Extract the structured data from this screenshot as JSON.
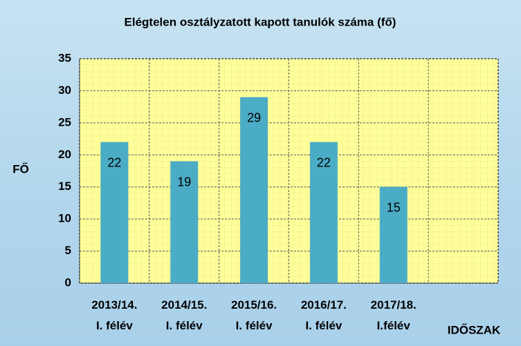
{
  "chart_data": {
    "type": "bar",
    "title": "Elégtelen osztályzatott kapott tanulók száma (fő)",
    "y_label": "FŐ",
    "x_label": "IDŐSZAK",
    "categories": [
      "2013/14.\nI. félév",
      "2014/15.\nI. félév",
      "2015/16.\nI. félév",
      "2016/17.\nI. félév",
      "2017/18.\nI.félév",
      null
    ],
    "values": [
      22,
      19,
      29,
      22,
      15,
      null
    ],
    "color": "#4bacc6",
    "plot_color": "#ffff99",
    "ylim": [
      0,
      35
    ],
    "yticks": [
      0,
      5,
      10,
      15,
      20,
      25,
      30,
      35
    ],
    "grid": true
  }
}
